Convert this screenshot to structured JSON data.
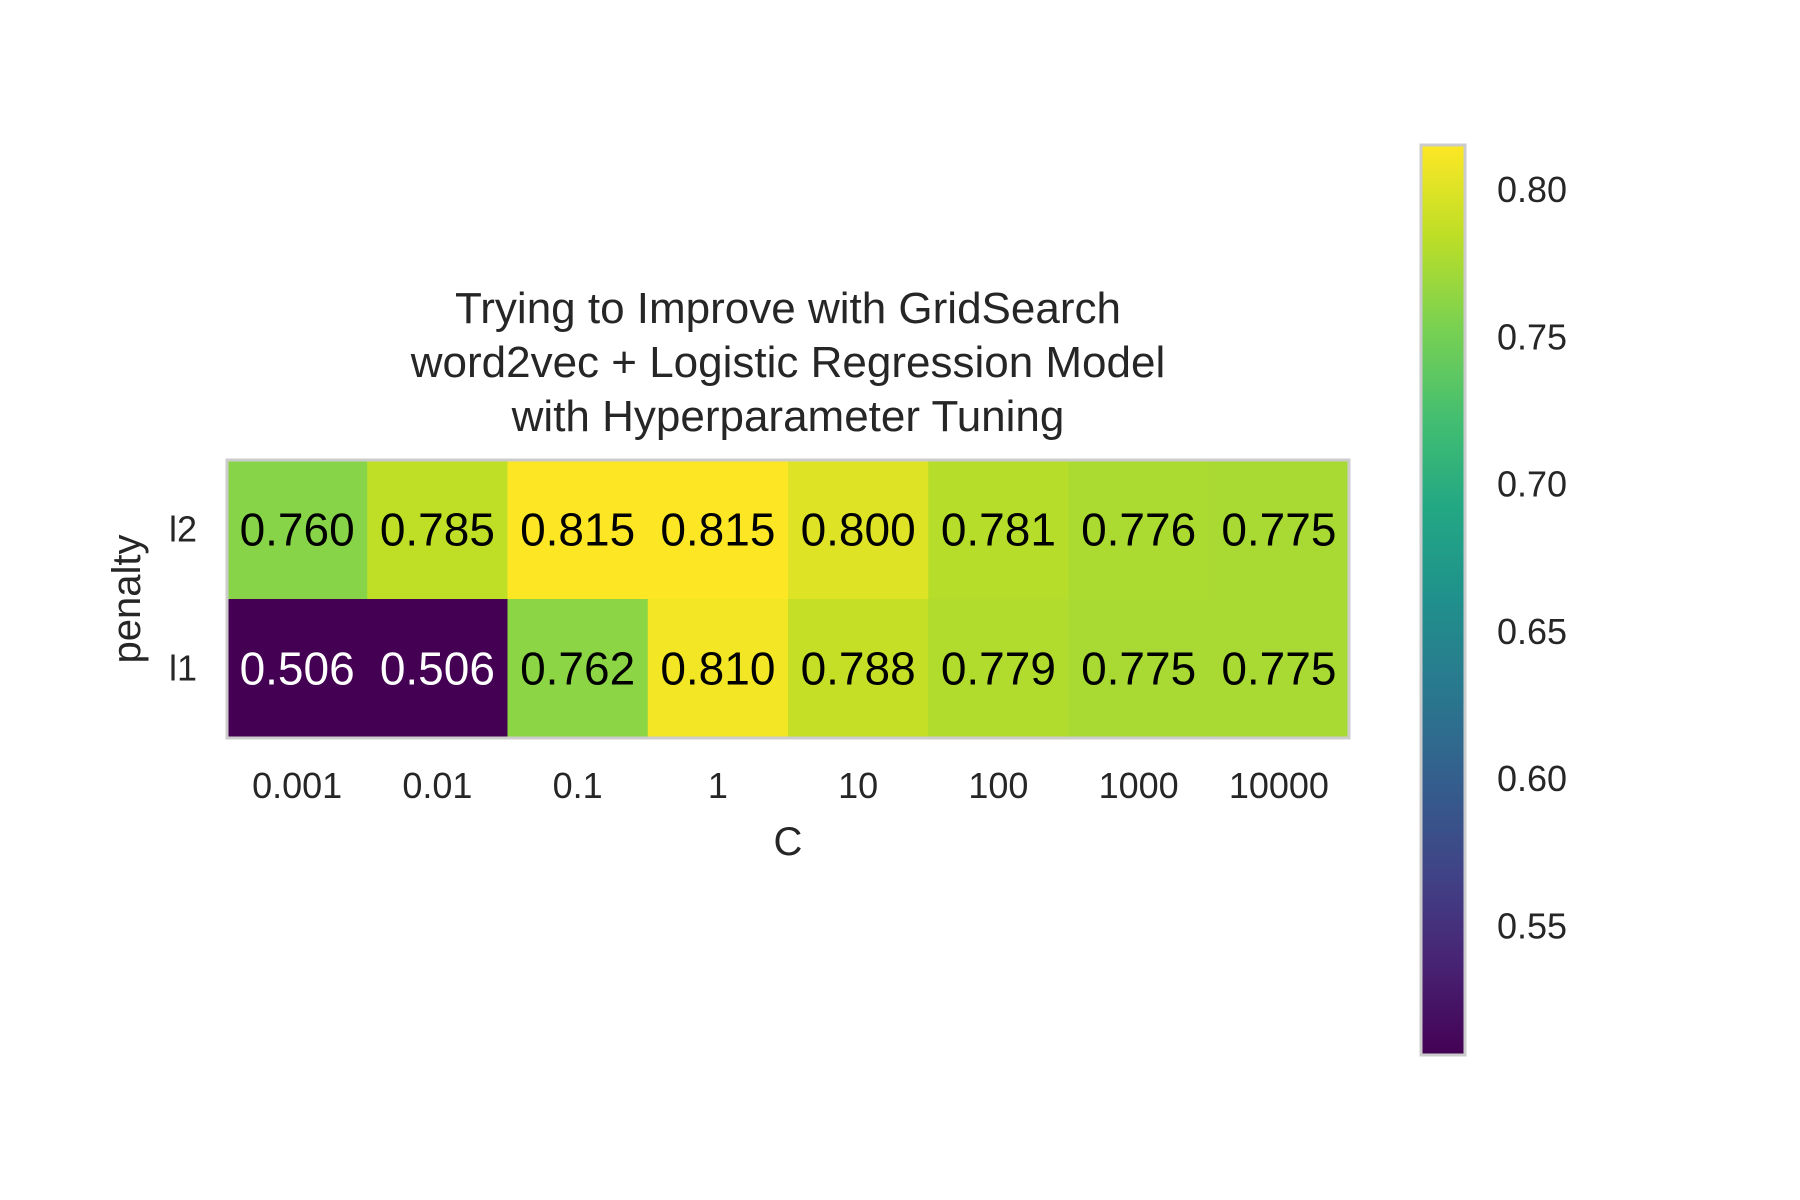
{
  "chart_data": {
    "type": "heatmap",
    "title_lines": [
      "Trying to Improve with GridSearch",
      "word2vec + Logistic Regression Model",
      "with Hyperparameter Tuning"
    ],
    "xlabel": "C",
    "ylabel": "penalty",
    "x_categories": [
      "0.001",
      "0.01",
      "0.1",
      "1",
      "10",
      "100",
      "1000",
      "10000"
    ],
    "y_categories": [
      "l2",
      "l1"
    ],
    "values": [
      [
        0.76,
        0.785,
        0.815,
        0.815,
        0.8,
        0.781,
        0.776,
        0.775
      ],
      [
        0.506,
        0.506,
        0.762,
        0.81,
        0.788,
        0.779,
        0.775,
        0.775
      ]
    ],
    "cell_labels": [
      [
        "0.760",
        "0.785",
        "0.815",
        "0.815",
        "0.800",
        "0.781",
        "0.776",
        "0.775"
      ],
      [
        "0.506",
        "0.506",
        "0.762",
        "0.810",
        "0.788",
        "0.779",
        "0.775",
        "0.775"
      ]
    ],
    "colormap": "viridis",
    "colorbar": {
      "vmin": 0.506,
      "vmax": 0.815,
      "ticks": [
        0.55,
        0.6,
        0.65,
        0.7,
        0.75,
        0.8
      ],
      "tick_labels": [
        "0.55",
        "0.60",
        "0.65",
        "0.70",
        "0.75",
        "0.80"
      ]
    },
    "colors": {
      "text": "#262626",
      "frame": "#cccccc",
      "annot_dark": "#000000",
      "annot_light": "#ffffff"
    }
  }
}
